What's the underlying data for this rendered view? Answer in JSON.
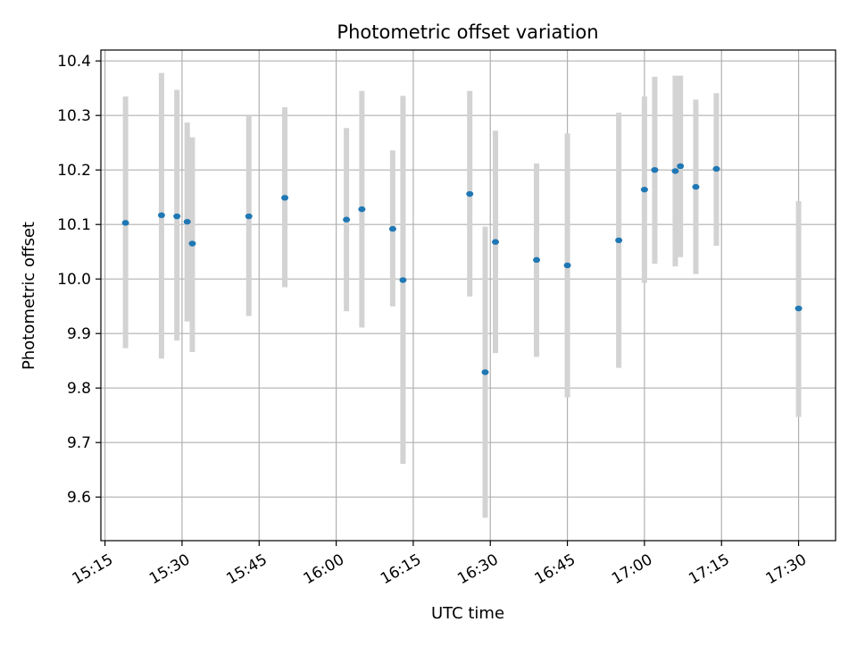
{
  "chart_data": {
    "type": "scatter",
    "title": "Photometric offset variation",
    "xlabel": "UTC time",
    "ylabel": "Photometric offset",
    "x_ticks": [
      "15:15",
      "15:30",
      "15:45",
      "16:00",
      "16:15",
      "16:30",
      "16:45",
      "17:00",
      "17:15",
      "17:30"
    ],
    "y_ticks": [
      "9.6",
      "9.7",
      "9.8",
      "9.9",
      "10.0",
      "10.1",
      "10.2",
      "10.3",
      "10.4"
    ],
    "xlim": [
      "15:15",
      "17:37"
    ],
    "ylim": [
      9.52,
      10.42
    ],
    "grid": true,
    "point_color": "#1f77b4",
    "errorbar_color": "#d3d3d3",
    "points": [
      {
        "x": "15:19",
        "y": 10.103,
        "ymin": 9.873,
        "ymax": 10.335
      },
      {
        "x": "15:26",
        "y": 10.117,
        "ymin": 9.854,
        "ymax": 10.378
      },
      {
        "x": "15:29",
        "y": 10.115,
        "ymin": 9.887,
        "ymax": 10.347
      },
      {
        "x": "15:31",
        "y": 10.105,
        "ymin": 9.922,
        "ymax": 10.287
      },
      {
        "x": "15:32",
        "y": 10.065,
        "ymin": 9.866,
        "ymax": 10.26
      },
      {
        "x": "15:43",
        "y": 10.115,
        "ymin": 9.932,
        "ymax": 10.3
      },
      {
        "x": "15:50",
        "y": 10.149,
        "ymin": 9.985,
        "ymax": 10.315
      },
      {
        "x": "16:02",
        "y": 10.109,
        "ymin": 9.941,
        "ymax": 10.277
      },
      {
        "x": "16:05",
        "y": 10.128,
        "ymin": 9.911,
        "ymax": 10.345
      },
      {
        "x": "16:11",
        "y": 10.092,
        "ymin": 9.95,
        "ymax": 10.236
      },
      {
        "x": "16:13",
        "y": 9.998,
        "ymin": 9.661,
        "ymax": 10.336
      },
      {
        "x": "16:26",
        "y": 10.156,
        "ymin": 9.968,
        "ymax": 10.345
      },
      {
        "x": "16:29",
        "y": 9.829,
        "ymin": 9.562,
        "ymax": 10.096
      },
      {
        "x": "16:31",
        "y": 10.068,
        "ymin": 9.864,
        "ymax": 10.272
      },
      {
        "x": "16:39",
        "y": 10.035,
        "ymin": 9.857,
        "ymax": 10.212
      },
      {
        "x": "16:45",
        "y": 10.025,
        "ymin": 9.783,
        "ymax": 10.267
      },
      {
        "x": "16:55",
        "y": 10.071,
        "ymin": 9.837,
        "ymax": 10.305
      },
      {
        "x": "17:00",
        "y": 10.164,
        "ymin": 9.993,
        "ymax": 10.335
      },
      {
        "x": "17:02",
        "y": 10.2,
        "ymin": 10.028,
        "ymax": 10.371
      },
      {
        "x": "17:06",
        "y": 10.198,
        "ymin": 10.023,
        "ymax": 10.373
      },
      {
        "x": "17:07",
        "y": 10.207,
        "ymin": 10.04,
        "ymax": 10.373
      },
      {
        "x": "17:10",
        "y": 10.169,
        "ymin": 10.009,
        "ymax": 10.329
      },
      {
        "x": "17:14",
        "y": 10.202,
        "ymin": 10.061,
        "ymax": 10.341
      },
      {
        "x": "17:30",
        "y": 9.946,
        "ymin": 9.747,
        "ymax": 10.143
      }
    ]
  }
}
